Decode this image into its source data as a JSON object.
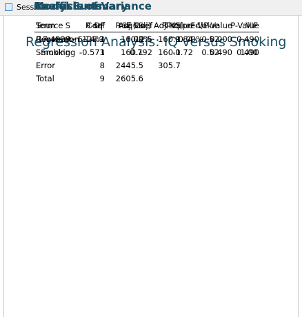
{
  "window": {
    "title": "Session"
  },
  "title": "Regression Analysis: IQ versus Smoking",
  "sections": [
    {
      "heading": "Analysis of Variance",
      "columns": [
        "Source",
        "DF",
        "Adj SS",
        "Adj MS",
        "F-Value",
        "P-Value"
      ],
      "rows": [
        [
          "Regression",
          "1",
          "160.1",
          "160.1",
          "0.52",
          "0.490"
        ],
        [
          "  Smoking",
          "1",
          "160.1",
          "160.1",
          "0.52",
          "0.490"
        ],
        [
          "Error",
          "8",
          "2445.5",
          "305.7"
        ],
        [
          "Total",
          "9",
          "2605.6"
        ]
      ]
    },
    {
      "heading": "Model Summary",
      "columns": [
        "S",
        "R-sq",
        "R-sq(adj)",
        "R-sq(pred)"
      ],
      "rows": [
        [
          "17.4839",
          "6.14%",
          "0.00%",
          "0.00%"
        ]
      ]
    },
    {
      "heading": "Coefficients",
      "columns": [
        "Term",
        "Coef",
        "SE Coef",
        "T-Value",
        "P-Value",
        "VIF"
      ],
      "rows": [
        [
          "Constant",
          "123.3",
          "12.5",
          "9.84",
          "0.000"
        ],
        [
          "Smoking",
          "-0.573",
          "0.792",
          "-0.72",
          "0.490",
          "1.00"
        ]
      ]
    }
  ]
}
